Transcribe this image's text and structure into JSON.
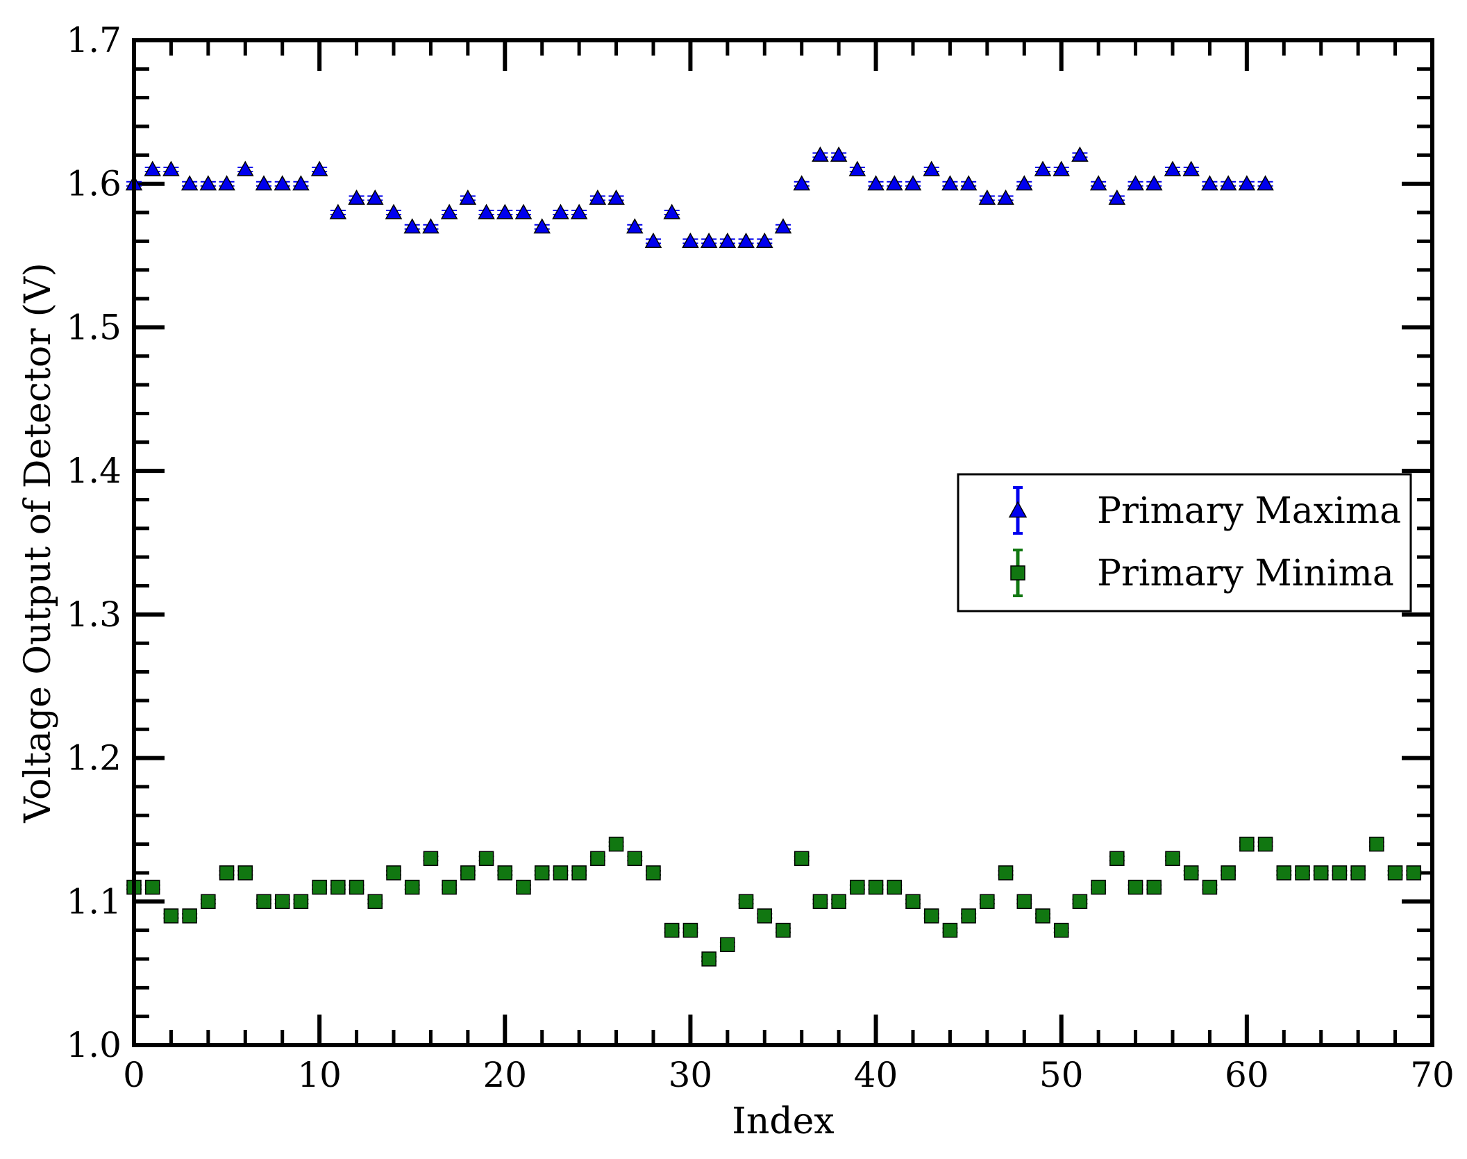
{
  "chart_data": {
    "type": "scatter",
    "title": "",
    "xlabel": "Index",
    "ylabel": "Voltage Output of Detector (V)",
    "xlim": [
      0,
      70
    ],
    "ylim": [
      1.0,
      1.7
    ],
    "xticks": [
      0,
      10,
      20,
      30,
      40,
      50,
      60,
      70
    ],
    "yticks": [
      1.0,
      1.1,
      1.2,
      1.3,
      1.4,
      1.5,
      1.6,
      1.7
    ],
    "xtick_labels": [
      "0",
      "10",
      "20",
      "30",
      "40",
      "50",
      "60",
      "70"
    ],
    "ytick_labels": [
      "1.0",
      "1.1",
      "1.2",
      "1.3",
      "1.4",
      "1.5",
      "1.6",
      "1.7"
    ],
    "grid": false,
    "legend_position": "center-right",
    "error_bars": true,
    "series": [
      {
        "name": "Primary Maxima",
        "marker": "triangle",
        "color": "#0000ee",
        "x": [
          0,
          1,
          2,
          3,
          4,
          5,
          6,
          7,
          8,
          9,
          10,
          11,
          12,
          13,
          14,
          15,
          16,
          17,
          18,
          19,
          20,
          21,
          22,
          23,
          24,
          25,
          26,
          27,
          28,
          29,
          30,
          31,
          32,
          33,
          34,
          35,
          36,
          37,
          38,
          39,
          40,
          41,
          42,
          43,
          44,
          45,
          46,
          47,
          48,
          49,
          50,
          51,
          52,
          53,
          54,
          55,
          56,
          57,
          58,
          59,
          60,
          61
        ],
        "y": [
          1.6,
          1.61,
          1.61,
          1.6,
          1.6,
          1.6,
          1.61,
          1.6,
          1.6,
          1.6,
          1.61,
          1.58,
          1.59,
          1.59,
          1.58,
          1.57,
          1.57,
          1.58,
          1.59,
          1.58,
          1.58,
          1.58,
          1.57,
          1.58,
          1.58,
          1.59,
          1.59,
          1.57,
          1.56,
          1.58,
          1.56,
          1.56,
          1.56,
          1.56,
          1.56,
          1.57,
          1.6,
          1.62,
          1.62,
          1.61,
          1.6,
          1.6,
          1.6,
          1.61,
          1.6,
          1.6,
          1.59,
          1.59,
          1.6,
          1.61,
          1.61,
          1.62,
          1.6,
          1.59,
          1.6,
          1.6,
          1.61,
          1.61,
          1.6,
          1.6,
          1.6,
          1.6
        ]
      },
      {
        "name": "Primary Minima",
        "marker": "square",
        "color": "#117711",
        "x": [
          0,
          1,
          2,
          3,
          4,
          5,
          6,
          7,
          8,
          9,
          10,
          11,
          12,
          13,
          14,
          15,
          16,
          17,
          18,
          19,
          20,
          21,
          22,
          23,
          24,
          25,
          26,
          27,
          28,
          29,
          30,
          31,
          32,
          33,
          34,
          35,
          36,
          37,
          38,
          39,
          40,
          41,
          42,
          43,
          44,
          45,
          46,
          47,
          48,
          49,
          50,
          51,
          52,
          53,
          54,
          55,
          56,
          57,
          58,
          59,
          60,
          61,
          62,
          63,
          64,
          65,
          66,
          67,
          68,
          69
        ],
        "y": [
          1.11,
          1.11,
          1.09,
          1.09,
          1.1,
          1.12,
          1.12,
          1.1,
          1.1,
          1.1,
          1.11,
          1.11,
          1.11,
          1.1,
          1.12,
          1.11,
          1.13,
          1.11,
          1.12,
          1.13,
          1.12,
          1.11,
          1.12,
          1.12,
          1.12,
          1.13,
          1.14,
          1.13,
          1.12,
          1.08,
          1.08,
          1.06,
          1.07,
          1.1,
          1.09,
          1.08,
          1.13,
          1.1,
          1.1,
          1.11,
          1.11,
          1.11,
          1.1,
          1.09,
          1.08,
          1.09,
          1.1,
          1.12,
          1.1,
          1.09,
          1.08,
          1.1,
          1.11,
          1.13,
          1.11,
          1.11,
          1.13,
          1.12,
          1.11,
          1.12,
          1.14,
          1.14,
          1.12,
          1.12,
          1.12,
          1.12,
          1.12,
          1.14,
          1.12,
          1.12
        ]
      }
    ]
  }
}
